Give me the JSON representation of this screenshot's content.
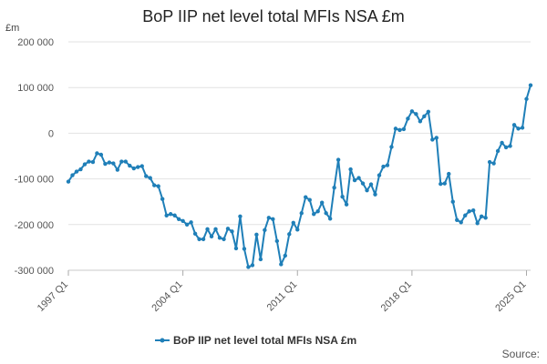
{
  "chart_data": {
    "type": "line",
    "title": "BoP IIP net level total MFIs NSA £m",
    "ylabel": "£m",
    "xlabel": "",
    "ylim": [
      -300000,
      200000
    ],
    "yticks": [
      200000,
      100000,
      0,
      -100000,
      -200000,
      -300000
    ],
    "ytick_labels": [
      "200 000",
      "100 000",
      "0",
      "-100 000",
      "-200 000",
      "-300 000"
    ],
    "xticks": [
      "1997 Q1",
      "2004 Q1",
      "2011 Q1",
      "2018 Q1",
      "2025 Q1"
    ],
    "legend": "top-bottom",
    "grid": true,
    "series": [
      {
        "name": "BoP IIP net level total MFIs NSA £m",
        "color": "#1f7fb8",
        "x_start": "1997 Q1",
        "x_end": "2025 Q1",
        "values": [
          -106000,
          -92000,
          -84000,
          -79000,
          -68000,
          -62000,
          -63000,
          -44000,
          -47000,
          -67000,
          -64000,
          -66000,
          -80000,
          -62000,
          -62000,
          -71000,
          -77000,
          -74000,
          -72000,
          -94000,
          -98000,
          -114000,
          -116000,
          -144000,
          -180000,
          -177000,
          -180000,
          -188000,
          -192000,
          -200000,
          -195000,
          -220000,
          -232000,
          -232000,
          -210000,
          -226000,
          -210000,
          -229000,
          -232000,
          -209000,
          -215000,
          -252000,
          -182000,
          -253000,
          -293000,
          -289000,
          -222000,
          -276000,
          -212000,
          -185000,
          -188000,
          -236000,
          -287000,
          -268000,
          -221000,
          -196000,
          -211000,
          -175000,
          -140000,
          -146000,
          -177000,
          -171000,
          -152000,
          -175000,
          -187000,
          -119000,
          -58000,
          -139000,
          -156000,
          -79000,
          -103000,
          -98000,
          -110000,
          -125000,
          -112000,
          -134000,
          -92000,
          -73000,
          -70000,
          -30000,
          10000,
          7000,
          9000,
          32000,
          48000,
          42000,
          26000,
          37000,
          47000,
          -14000,
          -10000,
          -111000,
          -110000,
          -89000,
          -150000,
          -190000,
          -195000,
          -180000,
          -171000,
          -169000,
          -197000,
          -182000,
          -185000,
          -63000,
          -66000,
          -39000,
          -21000,
          -31000,
          -28000,
          18000,
          10000,
          12000,
          75000,
          105000
        ]
      }
    ]
  },
  "source_label": "Source:"
}
